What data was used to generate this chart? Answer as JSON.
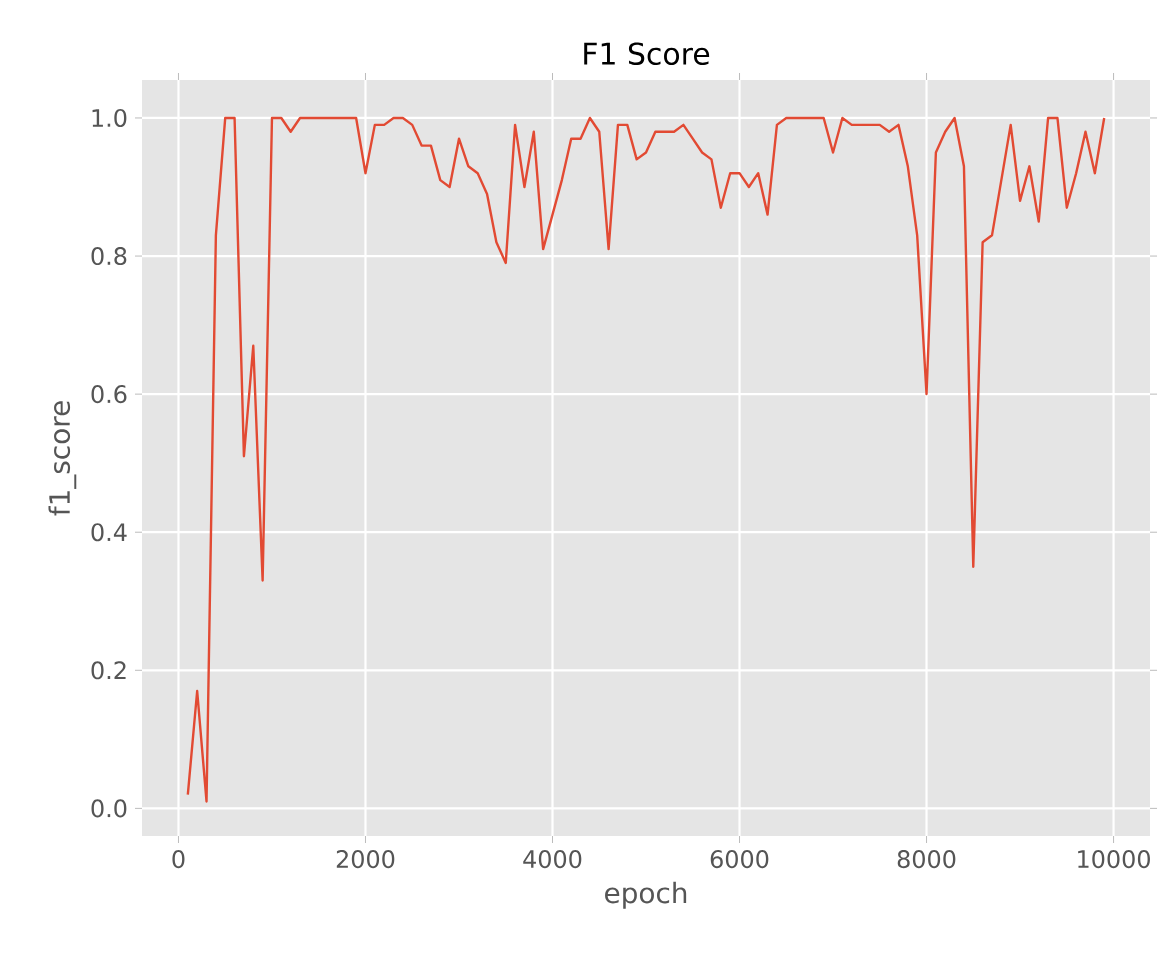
{
  "chart_data": {
    "type": "line",
    "title": "F1 Score",
    "xlabel": "epoch",
    "ylabel": "f1_score",
    "x": [
      100,
      200,
      300,
      400,
      500,
      600,
      700,
      800,
      900,
      1000,
      1100,
      1200,
      1300,
      1400,
      1500,
      1600,
      1700,
      1800,
      1900,
      2000,
      2100,
      2200,
      2300,
      2400,
      2500,
      2600,
      2700,
      2800,
      2900,
      3000,
      3100,
      3200,
      3300,
      3400,
      3500,
      3600,
      3700,
      3800,
      3900,
      4000,
      4100,
      4200,
      4300,
      4400,
      4500,
      4600,
      4700,
      4800,
      4900,
      5000,
      5100,
      5200,
      5300,
      5400,
      5500,
      5600,
      5700,
      5800,
      5900,
      6000,
      6100,
      6200,
      6300,
      6400,
      6500,
      6600,
      6700,
      6800,
      6900,
      7000,
      7100,
      7200,
      7300,
      7400,
      7500,
      7600,
      7700,
      7800,
      7900,
      8000,
      8100,
      8200,
      8300,
      8400,
      8500,
      8600,
      8700,
      8800,
      8900,
      9000,
      9100,
      9200,
      9300,
      9400,
      9500,
      9600,
      9700,
      9800,
      9900
    ],
    "series": [
      {
        "color": "#e24a33",
        "values": [
          0.02,
          0.17,
          0.01,
          0.83,
          1.0,
          1.0,
          0.51,
          0.67,
          0.33,
          1.0,
          1.0,
          0.98,
          1.0,
          1.0,
          1.0,
          1.0,
          1.0,
          1.0,
          1.0,
          0.92,
          0.99,
          0.99,
          1.0,
          1.0,
          0.99,
          0.96,
          0.96,
          0.91,
          0.9,
          0.97,
          0.93,
          0.92,
          0.89,
          0.82,
          0.79,
          0.99,
          0.9,
          0.98,
          0.81,
          0.86,
          0.91,
          0.97,
          0.97,
          1.0,
          0.98,
          0.81,
          0.99,
          0.99,
          0.94,
          0.95,
          0.98,
          0.98,
          0.98,
          0.99,
          0.97,
          0.95,
          0.94,
          0.87,
          0.92,
          0.92,
          0.9,
          0.92,
          0.86,
          0.99,
          1.0,
          1.0,
          1.0,
          1.0,
          1.0,
          0.95,
          1.0,
          0.99,
          0.99,
          0.99,
          0.99,
          0.98,
          0.99,
          0.93,
          0.83,
          0.6,
          0.95,
          0.98,
          1.0,
          0.93,
          0.35,
          0.82,
          0.83,
          0.91,
          0.99,
          0.88,
          0.93,
          0.85,
          1.0,
          1.0,
          0.87,
          0.92,
          0.98,
          0.92,
          1.0
        ]
      }
    ],
    "xlim": [
      -390,
      10390
    ],
    "ylim": [
      -0.04,
      1.055
    ],
    "xticks": [
      0,
      2000,
      4000,
      6000,
      8000,
      10000
    ],
    "yticks": [
      {
        "value": 0,
        "label": "0.0"
      },
      {
        "value": 0.2,
        "label": "0.2"
      },
      {
        "value": 0.4,
        "label": "0.4"
      },
      {
        "value": 0.6,
        "label": "0.6"
      },
      {
        "value": 0.8,
        "label": "0.8"
      },
      {
        "value": 1.0,
        "label": "1.0"
      }
    ],
    "grid": true,
    "line_style": "solid",
    "marker": "none"
  }
}
